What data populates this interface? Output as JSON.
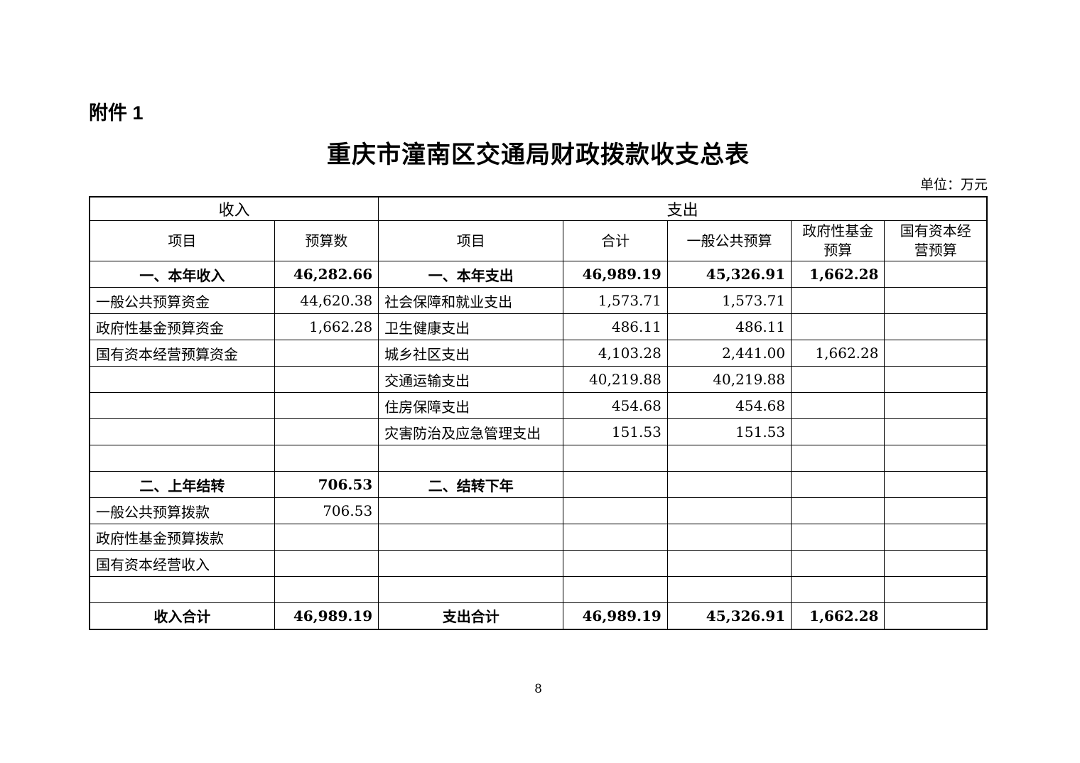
{
  "page": {
    "attachment_label": "附件 1",
    "title": "重庆市潼南区交通局财政拨款收支总表",
    "unit_note": "单位：万元",
    "page_number": "8"
  },
  "table": {
    "group_headers": {
      "income": "收入",
      "expense": "支出"
    },
    "column_headers": [
      "项目",
      "预算数",
      "项目",
      "合计",
      "一般公共预算",
      "政府性基金\n预算",
      "国有资本经\n营预算"
    ],
    "rows": [
      {
        "bold": true,
        "cells": [
          "一、本年收入",
          "46,282.66",
          "一、本年支出",
          "46,989.19",
          "45,326.91",
          "1,662.28",
          ""
        ]
      },
      {
        "bold": false,
        "cells": [
          "一般公共预算资金",
          "44,620.38",
          "社会保障和就业支出",
          "1,573.71",
          "1,573.71",
          "",
          ""
        ]
      },
      {
        "bold": false,
        "cells": [
          "政府性基金预算资金",
          "1,662.28",
          "卫生健康支出",
          "486.11",
          "486.11",
          "",
          ""
        ]
      },
      {
        "bold": false,
        "cells": [
          "国有资本经营预算资金",
          "",
          "城乡社区支出",
          "4,103.28",
          "2,441.00",
          "1,662.28",
          ""
        ]
      },
      {
        "bold": false,
        "cells": [
          "",
          "",
          "交通运输支出",
          "40,219.88",
          "40,219.88",
          "",
          ""
        ]
      },
      {
        "bold": false,
        "cells": [
          "",
          "",
          "住房保障支出",
          "454.68",
          "454.68",
          "",
          ""
        ]
      },
      {
        "bold": false,
        "cells": [
          "",
          "",
          "灾害防治及应急管理支出",
          "151.53",
          "151.53",
          "",
          ""
        ]
      },
      {
        "bold": false,
        "cells": [
          "",
          "",
          "",
          "",
          "",
          "",
          ""
        ]
      },
      {
        "bold": true,
        "cells": [
          "二、上年结转",
          "706.53",
          "二、结转下年",
          "",
          "",
          "",
          ""
        ]
      },
      {
        "bold": false,
        "cells": [
          "一般公共预算拨款",
          "706.53",
          "",
          "",
          "",
          "",
          ""
        ]
      },
      {
        "bold": false,
        "cells": [
          "政府性基金预算拨款",
          "",
          "",
          "",
          "",
          "",
          ""
        ]
      },
      {
        "bold": false,
        "cells": [
          "国有资本经营收入",
          "",
          "",
          "",
          "",
          "",
          ""
        ]
      },
      {
        "bold": false,
        "cells": [
          "",
          "",
          "",
          "",
          "",
          "",
          ""
        ]
      },
      {
        "bold": true,
        "cells": [
          "收入合计",
          "46,989.19",
          "支出合计",
          "46,989.19",
          "45,326.91",
          "1,662.28",
          ""
        ]
      }
    ]
  }
}
